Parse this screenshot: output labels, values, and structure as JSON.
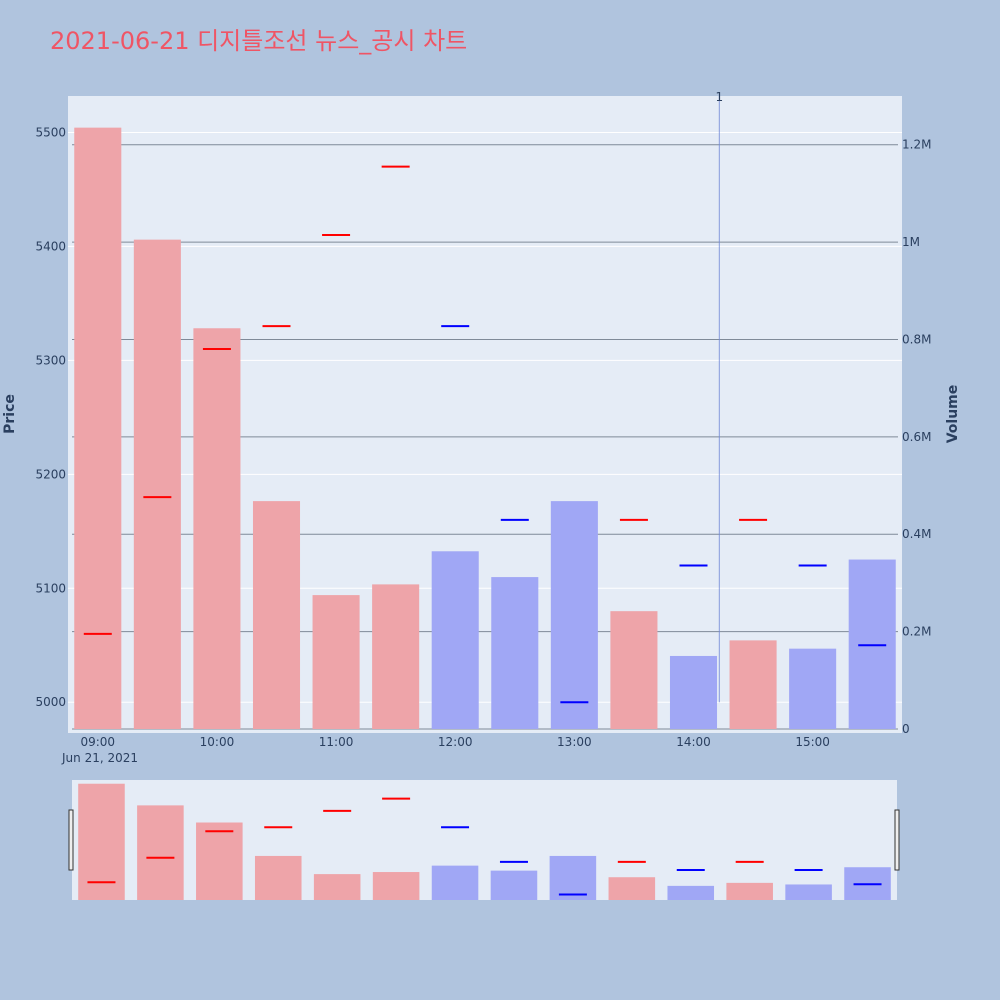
{
  "chart_data": {
    "type": "bar",
    "title": "2021-06-21 디지틀조선 뉴스_공시 차트",
    "y_left_label": "Price",
    "y_right_label": "Volume",
    "x_date_label": "Jun 21, 2021",
    "x_tick_labels": [
      "09:00",
      "10:00",
      "11:00",
      "12:00",
      "13:00",
      "14:00",
      "15:00"
    ],
    "y_left_ticks": [
      "5000",
      "5100",
      "5200",
      "5300",
      "5400",
      "5500"
    ],
    "y_right_ticks": [
      "0",
      "0.2M",
      "0.4M",
      "0.6M",
      "0.8M",
      "1M",
      "1.2M"
    ],
    "y_left_range": [
      4973,
      5532
    ],
    "y_right_range": [
      0,
      1300000
    ],
    "annotation_label": "1",
    "annotation_time": "14:13",
    "times": [
      "09:00",
      "09:30",
      "10:00",
      "10:30",
      "11:00",
      "11:30",
      "12:00",
      "12:30",
      "13:00",
      "13:30",
      "14:00",
      "14:30",
      "15:00",
      "15:30"
    ],
    "volume": [
      1235000,
      1005000,
      823000,
      468000,
      275000,
      297000,
      365000,
      312000,
      468000,
      242000,
      150000,
      182000,
      165000,
      348000
    ],
    "price": [
      5060,
      5180,
      5310,
      5330,
      5410,
      5470,
      5330,
      5160,
      5000,
      5160,
      5120,
      5160,
      5120,
      5050
    ],
    "direction": [
      "up",
      "up",
      "up",
      "up",
      "up",
      "up",
      "down",
      "down",
      "down",
      "up",
      "down",
      "up",
      "down",
      "down"
    ],
    "colors": {
      "up_bar": "#eea4a9",
      "down_bar": "#a0a7f5",
      "up_marker": "#ff0000",
      "down_marker": "#0000ff",
      "plot_bg": "#e5ecf6",
      "page_bg": "#b0c4de",
      "title": "#ef5565"
    },
    "grid": true,
    "range_slider": true
  }
}
